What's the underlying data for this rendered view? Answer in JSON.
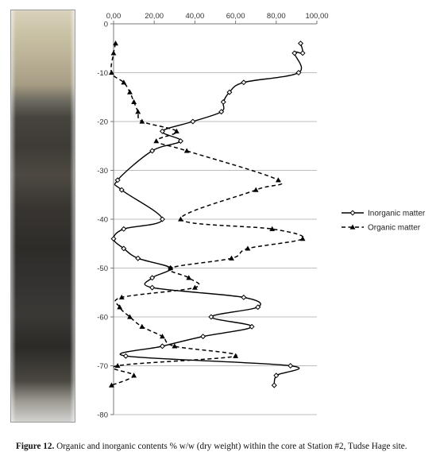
{
  "caption": {
    "label": "Figure 12.",
    "text": "Organic and inorganic contents % w/w (dry weight) within the core at Station #2, Tudse Hage site."
  },
  "chart_data": {
    "type": "line",
    "orientation": "vertical-profile",
    "xlim": [
      0,
      100
    ],
    "ylim": [
      -80,
      0
    ],
    "x_ticks": [
      0,
      20,
      40,
      60,
      80,
      100
    ],
    "x_tick_labels": [
      "0,00",
      "20,00",
      "40,00",
      "60,00",
      "80,00",
      "100,00"
    ],
    "y_ticks": [
      0,
      -10,
      -20,
      -30,
      -40,
      -50,
      -60,
      -70,
      -80
    ],
    "y_tick_labels": [
      "0",
      "-10",
      "-20",
      "-30",
      "-40",
      "-50",
      "-60",
      "-70",
      "-80"
    ],
    "grid": "horizontal",
    "legend_position": "right",
    "series": [
      {
        "name": "Inorganic matter",
        "style": "solid",
        "marker": "diamond",
        "color": "#000000",
        "points": [
          [
            92,
            -4
          ],
          [
            93,
            -6
          ],
          [
            89,
            -6
          ],
          [
            91,
            -10
          ],
          [
            64,
            -12
          ],
          [
            57,
            -14
          ],
          [
            54,
            -16
          ],
          [
            53,
            -18
          ],
          [
            39,
            -20
          ],
          [
            24,
            -22
          ],
          [
            33,
            -24
          ],
          [
            19,
            -26
          ],
          [
            2,
            -32
          ],
          [
            4,
            -34
          ],
          [
            24,
            -40
          ],
          [
            5,
            -42
          ],
          [
            0,
            -44
          ],
          [
            5,
            -46
          ],
          [
            12,
            -48
          ],
          [
            28,
            -50
          ],
          [
            19,
            -52
          ],
          [
            19,
            -54
          ],
          [
            64,
            -56
          ],
          [
            71,
            -58
          ],
          [
            48,
            -60
          ],
          [
            68,
            -62
          ],
          [
            44,
            -64
          ],
          [
            24,
            -66
          ],
          [
            6,
            -68
          ],
          [
            87,
            -70
          ],
          [
            80,
            -72
          ],
          [
            79,
            -74
          ]
        ]
      },
      {
        "name": "Organic matter",
        "style": "dashed",
        "marker": "triangle",
        "color": "#000000",
        "points": [
          [
            1,
            -4
          ],
          [
            0,
            -6
          ],
          [
            -1,
            -10
          ],
          [
            5,
            -12
          ],
          [
            8,
            -14
          ],
          [
            10,
            -16
          ],
          [
            12,
            -18
          ],
          [
            14,
            -20
          ],
          [
            31,
            -22
          ],
          [
            21,
            -24
          ],
          [
            36,
            -26
          ],
          [
            81,
            -32
          ],
          [
            70,
            -34
          ],
          [
            33,
            -40
          ],
          [
            78,
            -42
          ],
          [
            93,
            -44
          ],
          [
            66,
            -46
          ],
          [
            58,
            -48
          ],
          [
            28,
            -50
          ],
          [
            37,
            -52
          ],
          [
            40,
            -54
          ],
          [
            4,
            -56
          ],
          [
            3,
            -58
          ],
          [
            8,
            -60
          ],
          [
            14,
            -62
          ],
          [
            24,
            -64
          ],
          [
            30,
            -66
          ],
          [
            60,
            -68
          ],
          [
            2,
            -70
          ],
          [
            10,
            -72
          ],
          [
            -1,
            -74
          ]
        ]
      }
    ]
  }
}
